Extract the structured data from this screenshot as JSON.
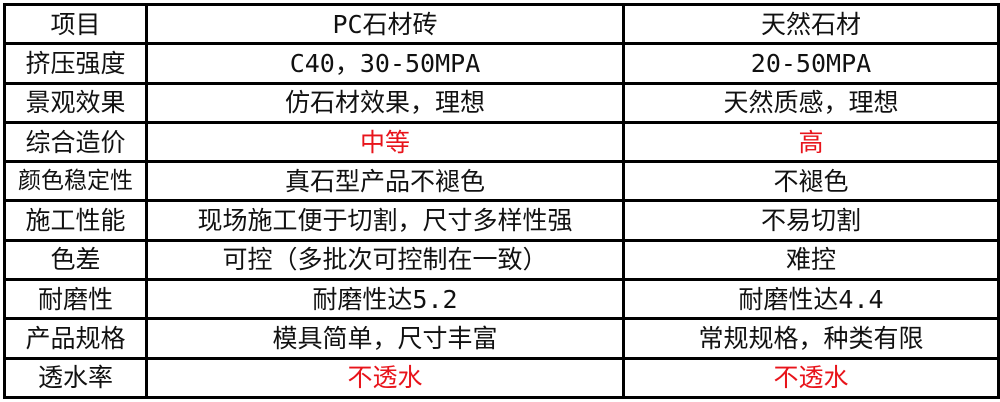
{
  "colors": {
    "highlight": "#e8141b"
  },
  "table": {
    "header": [
      "项目",
      "PC石材砖",
      "天然石材"
    ],
    "rows": [
      {
        "item": "挤压强度",
        "pc": "C40，30-50MPA",
        "natural": "20-50MPA",
        "highlight": false
      },
      {
        "item": "景观效果",
        "pc": "仿石材效果，理想",
        "natural": "天然质感，理想",
        "highlight": false
      },
      {
        "item": "综合造价",
        "pc": "中等",
        "natural": "高",
        "highlight": true
      },
      {
        "item": "颜色稳定性",
        "pc": "真石型产品不褪色",
        "natural": "不褪色",
        "highlight": false
      },
      {
        "item": "施工性能",
        "pc": "现场施工便于切割，尺寸多样性强",
        "natural": "不易切割",
        "highlight": false
      },
      {
        "item": "色差",
        "pc": "可控（多批次可控制在一致）",
        "natural": "难控",
        "highlight": false
      },
      {
        "item": "耐磨性",
        "pc": "耐磨性达5.2",
        "natural": "耐磨性达4.4",
        "highlight": false
      },
      {
        "item": "产品规格",
        "pc": "模具简单，尺寸丰富",
        "natural": "常规规格，种类有限",
        "highlight": false
      },
      {
        "item": "透水率",
        "pc": "不透水",
        "natural": "不透水",
        "highlight": true
      }
    ]
  }
}
